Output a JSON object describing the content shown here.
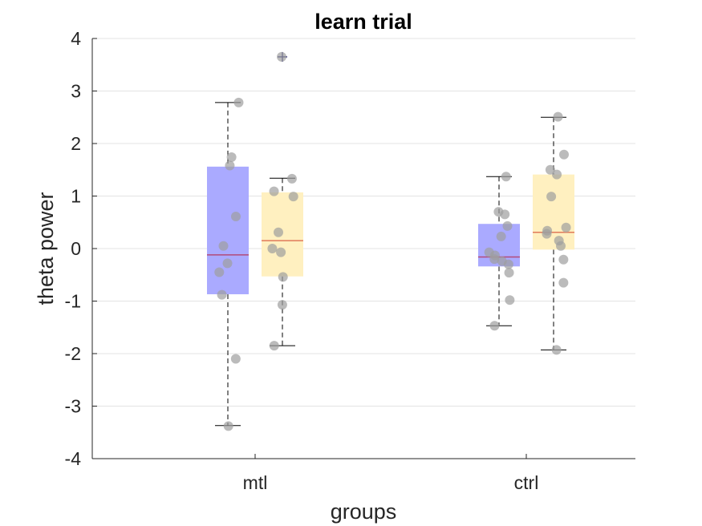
{
  "chart_data": {
    "type": "box",
    "title": "learn trial",
    "xlabel": "groups",
    "ylabel": "theta power",
    "ylim": [
      -4,
      4
    ],
    "yticks": [
      -4,
      -3,
      -2,
      -1,
      0,
      1,
      2,
      3,
      4
    ],
    "ytick_labels": [
      "-4",
      "-3",
      "-2",
      "-1",
      "0",
      "1",
      "2",
      "3",
      "4"
    ],
    "grid": "horizontal",
    "categories": [
      "mtl",
      "ctrl"
    ],
    "box_colors": [
      "#aaaaff",
      "#fff0c0"
    ],
    "median_color": "#b24a7a",
    "point_color": "#9e9e9e",
    "groups": [
      {
        "category": "mtl",
        "boxes": [
          {
            "color_index": 0,
            "q1": -0.87,
            "median": -0.12,
            "q3": 1.56,
            "whisker_low": -3.37,
            "whisker_high": 2.78,
            "outliers": [],
            "points": [
              2.78,
              1.74,
              1.58,
              0.61,
              0.05,
              -0.28,
              -0.45,
              -0.88,
              -2.1,
              -3.38
            ]
          },
          {
            "color_index": 1,
            "q1": -0.53,
            "median": 0.15,
            "q3": 1.07,
            "whisker_low": -1.85,
            "whisker_high": 1.34,
            "outliers": [
              3.65
            ],
            "points": [
              3.65,
              1.33,
              1.09,
              0.99,
              0.31,
              0.0,
              -0.07,
              -0.54,
              -1.07,
              -1.85
            ]
          }
        ]
      },
      {
        "category": "ctrl",
        "boxes": [
          {
            "color_index": 0,
            "q1": -0.34,
            "median": -0.16,
            "q3": 0.47,
            "whisker_low": -1.47,
            "whisker_high": 1.37,
            "outliers": [],
            "points": [
              1.37,
              0.7,
              0.65,
              0.43,
              0.23,
              -0.07,
              -0.13,
              -0.2,
              -0.24,
              -0.3,
              -0.46,
              -0.98,
              -1.47
            ]
          },
          {
            "color_index": 1,
            "q1": -0.02,
            "median": 0.31,
            "q3": 1.41,
            "whisker_low": -1.93,
            "whisker_high": 2.5,
            "outliers": [],
            "points": [
              2.51,
              1.79,
              1.5,
              1.41,
              0.99,
              0.4,
              0.34,
              0.28,
              0.15,
              0.05,
              -0.21,
              -0.65,
              -1.93
            ]
          }
        ]
      }
    ]
  }
}
